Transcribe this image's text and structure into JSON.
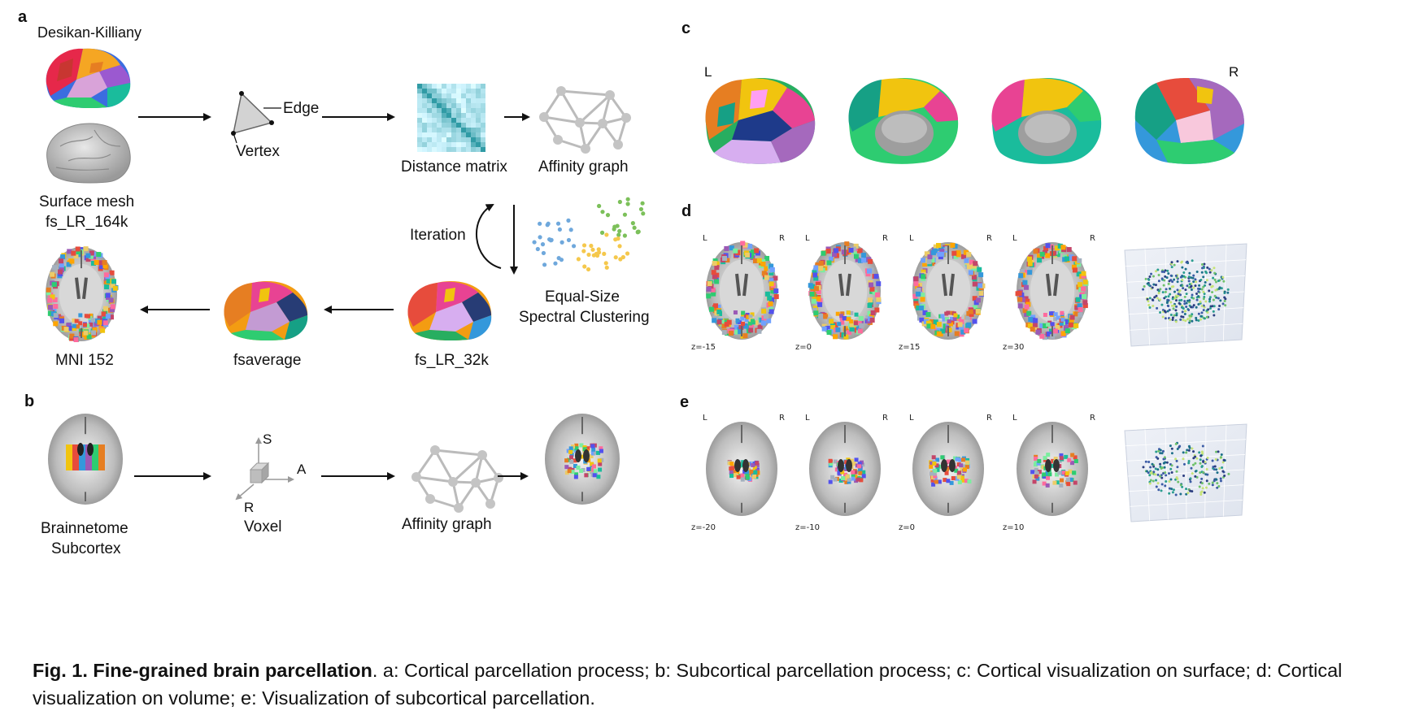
{
  "panel_a": {
    "letter": "a",
    "desikan_label": "Desikan-Killiany",
    "surface_mesh_label": "Surface mesh",
    "surface_mesh_space": "fs_LR_164k",
    "edge_label": "Edge",
    "vertex_label": "Vertex",
    "distance_matrix_label": "Distance matrix",
    "affinity_graph_label": "Affinity graph",
    "iteration_label": "Iteration",
    "clustering_label_line1": "Equal-Size",
    "clustering_label_line2": "Spectral Clustering",
    "fs_lr_32k_label": "fs_LR_32k",
    "fsaverage_label": "fsaverage",
    "mni_label": "MNI 152"
  },
  "panel_b": {
    "letter": "b",
    "atlas_line1": "Brainnetome",
    "atlas_line2": "Subcortex",
    "axis_s": "S",
    "axis_a": "A",
    "axis_r": "R",
    "voxel_label": "Voxel",
    "affinity_graph_label": "Affinity graph"
  },
  "panel_c": {
    "letter": "c",
    "left_label": "L",
    "right_label": "R"
  },
  "panel_d": {
    "letter": "d",
    "slices": [
      {
        "l": "L",
        "r": "R",
        "z": "z=-15"
      },
      {
        "l": "L",
        "r": "R",
        "z": "z=0"
      },
      {
        "l": "L",
        "r": "R",
        "z": "z=15"
      },
      {
        "l": "L",
        "r": "R",
        "z": "z=30"
      }
    ]
  },
  "panel_e": {
    "letter": "e",
    "slices": [
      {
        "l": "L",
        "r": "R",
        "z": "z=-20"
      },
      {
        "l": "L",
        "r": "R",
        "z": "z=-10"
      },
      {
        "l": "L",
        "r": "R",
        "z": "z=0"
      },
      {
        "l": "L",
        "r": "R",
        "z": "z=10"
      }
    ]
  },
  "caption": {
    "bold": "Fig. 1. Fine-grained brain parcellation",
    "text": ". a: Cortical parcellation process; b: Subcortical parcellation process; c: Cortical visualization on surface; d: Cortical visualization on volume; e: Visualization of subcortical parcellation."
  },
  "colors": {
    "arrow": "#111111",
    "graph": "#bbbbbb",
    "matrix": "#2a8aa8",
    "cluster_blue": "#6fa8dc",
    "cluster_green": "#7cc05a",
    "cluster_yellow": "#f5c84c"
  }
}
